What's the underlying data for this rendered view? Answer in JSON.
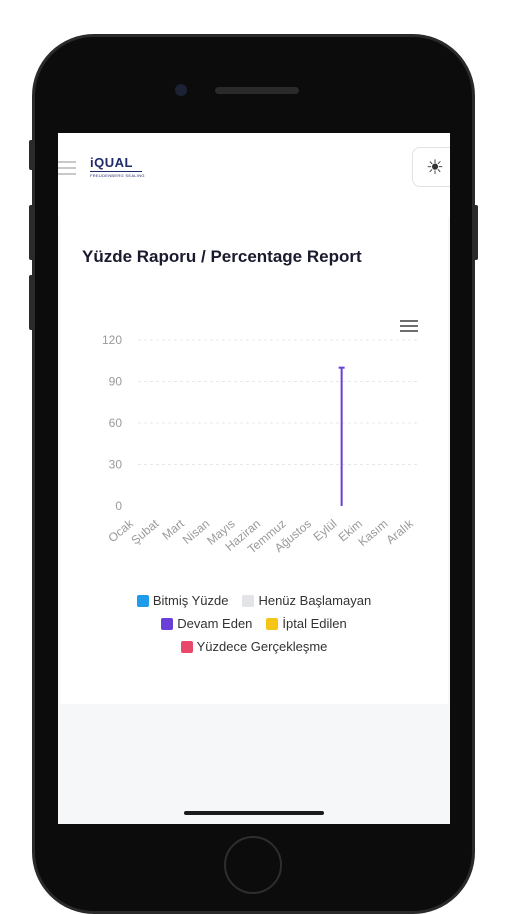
{
  "header": {
    "menu_icon": "hamburger-icon",
    "logo_main": "iQUAL",
    "logo_sub": "FREUDENBERG SEALING",
    "theme_icon": "sun-icon",
    "theme_glyph": "☀"
  },
  "report": {
    "title": "Yüzde Raporu / Percentage Report",
    "menu_icon": "menu-icon"
  },
  "chart_data": {
    "type": "line",
    "categories": [
      "Ocak",
      "Şubat",
      "Mart",
      "Nisan",
      "Mayıs",
      "Haziran",
      "Temmuz",
      "Ağustos",
      "Eylül",
      "Ekim",
      "Kasım",
      "Aralık"
    ],
    "ylim": [
      0,
      120
    ],
    "yticks": [
      0,
      30,
      60,
      90,
      120
    ],
    "grid": true,
    "series": [
      {
        "name": "Bitmiş Yüzde",
        "color": "#1e9be9",
        "values": [
          0,
          0,
          0,
          0,
          0,
          0,
          0,
          0,
          0,
          0,
          0,
          0
        ]
      },
      {
        "name": "Henüz Başlamayan",
        "color": "#e3e4e8",
        "values": [
          0,
          0,
          0,
          0,
          0,
          0,
          0,
          0,
          0,
          0,
          0,
          0
        ]
      },
      {
        "name": "Devam Eden",
        "color": "#6a3fd8",
        "values": [
          0,
          0,
          0,
          0,
          0,
          0,
          0,
          0,
          100,
          0,
          0,
          0
        ]
      },
      {
        "name": "İptal Edilen",
        "color": "#f5c518",
        "values": [
          0,
          0,
          0,
          0,
          0,
          0,
          0,
          0,
          0,
          0,
          0,
          0
        ]
      },
      {
        "name": "Yüzdece Gerçekleşme",
        "color": "#e8496a",
        "values": [
          0,
          0,
          0,
          0,
          0,
          0,
          0,
          0,
          0,
          0,
          0,
          0
        ]
      }
    ],
    "legend_position": "bottom"
  }
}
